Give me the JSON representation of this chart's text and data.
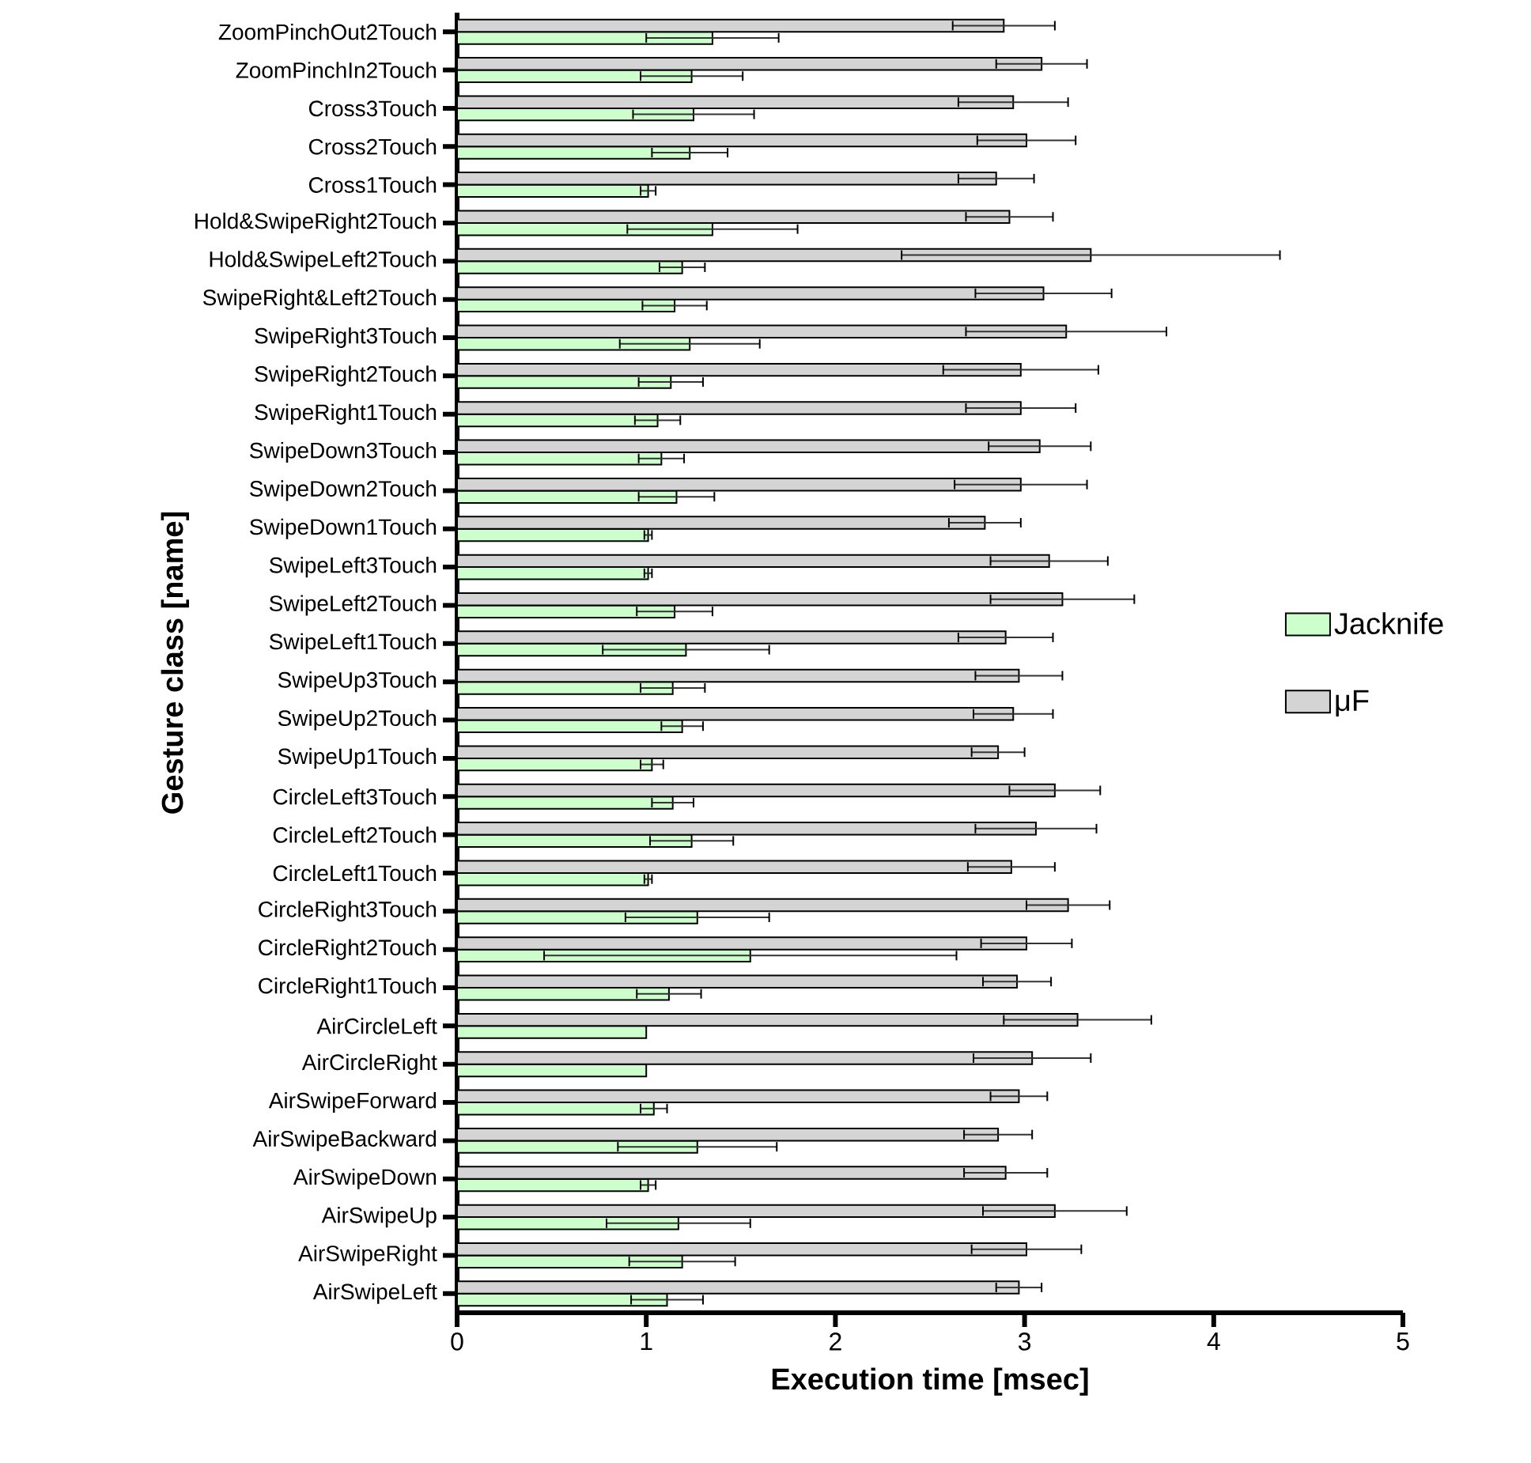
{
  "chart_data": {
    "type": "bar",
    "orientation": "horizontal",
    "xlabel": "Execution time [msec]",
    "ylabel": "Gesture class [name]",
    "categories": [
      "ZoomPinchOut2Touch",
      "ZoomPinchIn2Touch",
      "Cross3Touch",
      "Cross2Touch",
      "Cross1Touch",
      "Hold&SwipeRight2Touch",
      "Hold&SwipeLeft2Touch",
      "SwipeRight&Left2Touch",
      "SwipeRight3Touch",
      "SwipeRight2Touch",
      "SwipeRight1Touch",
      "SwipeDown3Touch",
      "SwipeDown2Touch",
      "SwipeDown1Touch",
      "SwipeLeft3Touch",
      "SwipeLeft2Touch",
      "SwipeLeft1Touch",
      "SwipeUp3Touch",
      "SwipeUp2Touch",
      "SwipeUp1Touch",
      "CircleLeft3Touch",
      "CircleLeft2Touch",
      "CircleLeft1Touch",
      "CircleRight3Touch",
      "CircleRight2Touch",
      "CircleRight1Touch",
      "AirCircleLeft",
      "AirCircleRight",
      "AirSwipeForward",
      "AirSwipeBackward",
      "AirSwipeDown",
      "AirSwipeUp",
      "AirSwipeRight",
      "AirSwipeLeft"
    ],
    "series": [
      {
        "name": "Jacknife",
        "color": "#ccffcc",
        "values": [
          1.35,
          1.24,
          1.25,
          1.23,
          1.01,
          1.35,
          1.19,
          1.15,
          1.23,
          1.13,
          1.06,
          1.08,
          1.16,
          1.01,
          1.01,
          1.15,
          1.21,
          1.14,
          1.19,
          1.03,
          1.14,
          1.24,
          1.01,
          1.27,
          1.55,
          1.12,
          1.0,
          1.0,
          1.04,
          1.27,
          1.01,
          1.17,
          1.19,
          1.11
        ],
        "errors": [
          0.35,
          0.27,
          0.32,
          0.2,
          0.04,
          0.45,
          0.12,
          0.17,
          0.37,
          0.17,
          0.12,
          0.12,
          0.2,
          0.02,
          0.02,
          0.2,
          0.44,
          0.17,
          0.11,
          0.06,
          0.11,
          0.22,
          0.02,
          0.38,
          1.09,
          0.17,
          null,
          null,
          0.07,
          0.42,
          0.04,
          0.38,
          0.28,
          0.19
        ]
      },
      {
        "name": "μF",
        "color": "#d4d4d4",
        "values": [
          2.89,
          3.09,
          2.94,
          3.01,
          2.85,
          2.92,
          3.35,
          3.1,
          3.22,
          2.98,
          2.98,
          3.08,
          2.98,
          2.79,
          3.13,
          3.2,
          2.9,
          2.97,
          2.94,
          2.86,
          3.16,
          3.06,
          2.93,
          3.23,
          3.01,
          2.96,
          3.28,
          3.04,
          2.97,
          2.86,
          2.9,
          3.16,
          3.01,
          2.97
        ],
        "errors": [
          0.27,
          0.24,
          0.29,
          0.26,
          0.2,
          0.23,
          1.0,
          0.36,
          0.53,
          0.41,
          0.29,
          0.27,
          0.35,
          0.19,
          0.31,
          0.38,
          0.25,
          0.23,
          0.21,
          0.14,
          0.24,
          0.32,
          0.23,
          0.22,
          0.24,
          0.18,
          0.39,
          0.31,
          0.15,
          0.18,
          0.22,
          0.38,
          0.29,
          0.12
        ]
      }
    ],
    "xlim": [
      0,
      5
    ],
    "xticks": [
      0,
      1,
      2,
      3,
      4,
      5
    ],
    "legend": "right"
  }
}
